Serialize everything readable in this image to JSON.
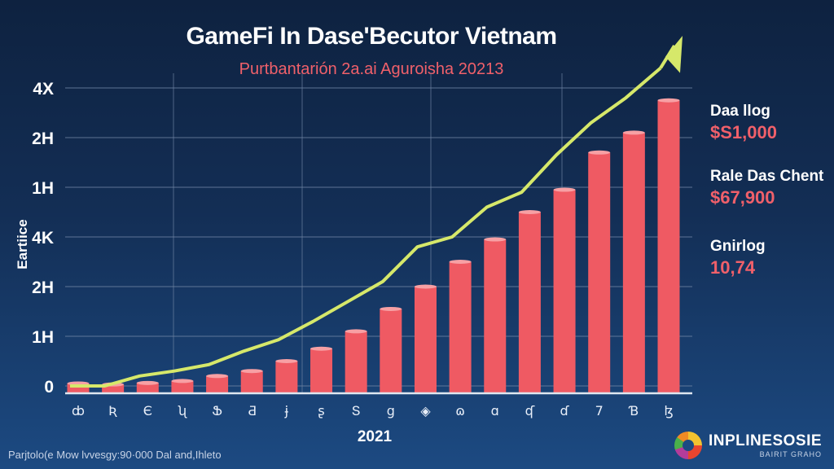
{
  "chart_data": {
    "type": "bar",
    "title": "GameFi In Dase'Becutor Vietnam",
    "subtitle": "Purtbantarión 2a.ai Aguroisha 20213",
    "xlabel": "2021",
    "ylabel": "Eartiice",
    "categories": [
      "ȸ",
      "Ʀ",
      "Є",
      "ʯ",
      "Ֆ",
      "Ƌ",
      "ɉ",
      "ʂ",
      "Տ",
      "ց",
      "◈",
      "ɷ",
      "ɑ",
      "ʠ",
      "ɗ",
      "7",
      "Ɓ",
      "ɮ"
    ],
    "yticks": [
      "0",
      "1H",
      "2H",
      "4K",
      "1H",
      "2H",
      "4X"
    ],
    "ylim": [
      0,
      6
    ],
    "grid": true,
    "series": [
      {
        "type": "bar",
        "color": "#ef5a63",
        "values": [
          0.05,
          0.03,
          0.06,
          0.1,
          0.2,
          0.3,
          0.5,
          0.75,
          1.1,
          1.55,
          2.0,
          2.5,
          2.95,
          3.5,
          3.95,
          4.7,
          5.1,
          5.75
        ]
      },
      {
        "type": "line",
        "color": "#d6e86a",
        "arrow": true,
        "values": [
          0.0,
          0.0,
          0.2,
          0.3,
          0.43,
          0.7,
          0.93,
          1.3,
          1.7,
          2.1,
          2.8,
          3.0,
          3.6,
          3.9,
          4.65,
          5.3,
          5.8,
          6.4
        ]
      }
    ]
  },
  "side_stats": [
    {
      "label": "Daa llog",
      "value": "$S1,000"
    },
    {
      "label": "Rale Das Chent",
      "value": "$67,900"
    },
    {
      "label": "Gnirlog",
      "value": "10,74"
    }
  ],
  "footnote": "Parjtolo(e Mow lvvesgy:90·000 Dal and,Ihleto",
  "logo": {
    "name": "INPLINESOSIE",
    "tagline": "BAIRIT GRAHO"
  }
}
